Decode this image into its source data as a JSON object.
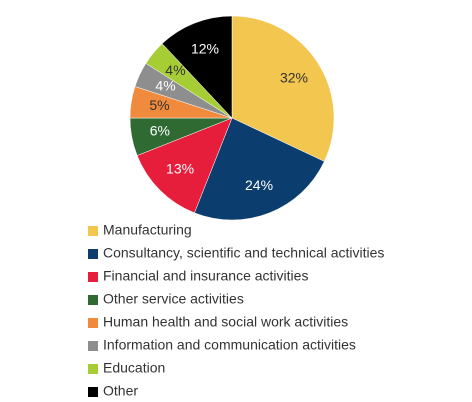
{
  "chart_data": {
    "type": "pie",
    "categories": [
      "Manufacturing",
      "Consultancy, scientific and technical activities",
      "Financial and insurance activities",
      "Other service activities",
      "Human health and social work activities",
      "Information and communication activities",
      "Education",
      "Other"
    ],
    "values": [
      32,
      24,
      13,
      6,
      5,
      4,
      4,
      12
    ],
    "value_labels": [
      "32%",
      "24%",
      "13%",
      "6%",
      "5%",
      "4%",
      "4%",
      "12%"
    ],
    "colors": [
      "#f2c64f",
      "#0b3d6e",
      "#e61e3c",
      "#2f6a33",
      "#f08a3c",
      "#8e8e8e",
      "#a7cd34",
      "#000000"
    ]
  }
}
